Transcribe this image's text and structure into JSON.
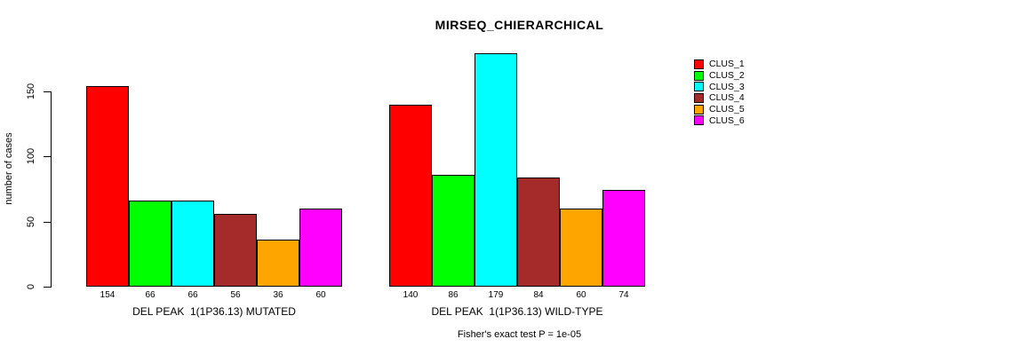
{
  "title": "MIRSEQ_CHIERARCHICAL",
  "chart_data": {
    "type": "bar",
    "title": "MIRSEQ_CHIERARCHICAL",
    "ylabel": "number of cases",
    "xlabel": "",
    "ylim": [
      0,
      180
    ],
    "yticks": [
      0,
      50,
      100,
      150
    ],
    "grid": "off",
    "legend_position": "top-right-outside",
    "categories": [
      "CLUS_1",
      "CLUS_2",
      "CLUS_3",
      "CLUS_4",
      "CLUS_5",
      "CLUS_6"
    ],
    "series_colors": [
      "#FF0000",
      "#00FF00",
      "#00FFFF",
      "#A52A2A",
      "#FFA500",
      "#FF00FF"
    ],
    "groups": [
      {
        "label": "DEL PEAK  1(1P36.13) MUTATED",
        "values": [
          154,
          66,
          66,
          56,
          36,
          60
        ]
      },
      {
        "label": "DEL PEAK  1(1P36.13) WILD-TYPE",
        "values": [
          140,
          86,
          179,
          84,
          60,
          74
        ]
      }
    ],
    "bar_value_labels_shown": true,
    "footnote": "Fisher's exact test P = 1e-05"
  },
  "legend": {
    "entries": [
      {
        "label": "CLUS_1",
        "color": "#FF0000"
      },
      {
        "label": "CLUS_2",
        "color": "#00FF00"
      },
      {
        "label": "CLUS_3",
        "color": "#00FFFF"
      },
      {
        "label": "CLUS_4",
        "color": "#A52A2A"
      },
      {
        "label": "CLUS_5",
        "color": "#FFA500"
      },
      {
        "label": "CLUS_6",
        "color": "#FF00FF"
      }
    ]
  }
}
